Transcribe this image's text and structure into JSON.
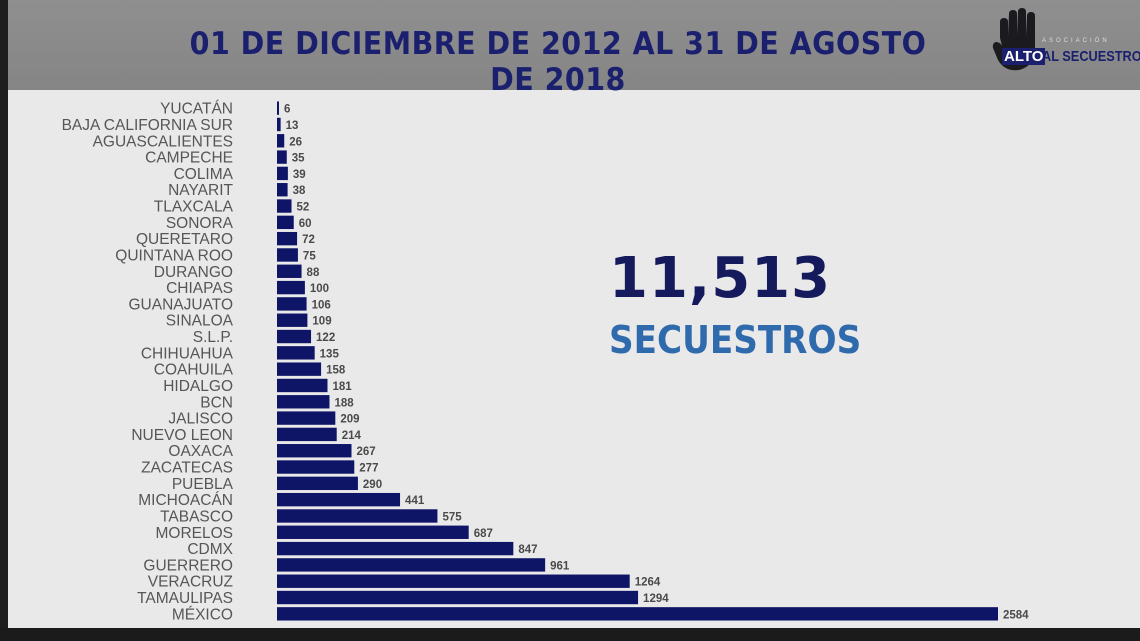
{
  "header": {
    "title": "01 DE DICIEMBRE DE 2012 AL 31 DE AGOSTO DE 2018"
  },
  "logo": {
    "assoc": "ASOCIACIÓN",
    "alto": "ALTO",
    "rest": "AL SECUESTRO",
    "icon": "raised-hand-icon"
  },
  "total": {
    "number": "11,513",
    "label": "SECUESTROS"
  },
  "colors": {
    "bar": "#0f1566",
    "header_bg": "#898989",
    "title": "#1a1f6e",
    "total_number": "#141a5c",
    "total_label": "#2f6aad"
  },
  "chart_data": {
    "type": "bar",
    "orientation": "horizontal",
    "categories": [
      "YUCATÁN",
      "BAJA CALIFORNIA SUR",
      "AGUASCALIENTES",
      "CAMPECHE",
      "COLIMA",
      "NAYARIT",
      "TLAXCALA",
      "SONORA",
      "QUERETARO",
      "QUINTANA ROO",
      "DURANGO",
      "CHIAPAS",
      "GUANAJUATO",
      "SINALOA",
      "S.L.P.",
      "CHIHUAHUA",
      "COAHUILA",
      "HIDALGO",
      "BCN",
      "JALISCO",
      "NUEVO LEON",
      "OAXACA",
      "ZACATECAS",
      "PUEBLA",
      "MICHOACÁN",
      "TABASCO",
      "MORELOS",
      "CDMX",
      "GUERRERO",
      "VERACRUZ",
      "TAMAULIPAS",
      "MÉXICO"
    ],
    "values": [
      6,
      13,
      26,
      35,
      39,
      38,
      52,
      60,
      72,
      75,
      88,
      100,
      106,
      109,
      122,
      135,
      158,
      181,
      188,
      209,
      214,
      267,
      277,
      290,
      441,
      575,
      687,
      847,
      961,
      1264,
      1294,
      2584
    ],
    "xlim": [
      0,
      2584
    ],
    "grid": false,
    "legend": "none"
  }
}
